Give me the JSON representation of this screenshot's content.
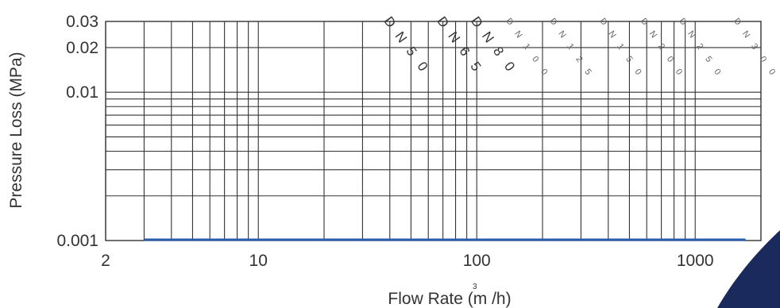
{
  "chart_data": {
    "type": "line",
    "xlabel": "Flow Rate (m /h)",
    "xlabel_superscript": "3",
    "ylabel": "Pressure Loss (MPa)",
    "x_scale": "log",
    "y_scale": "log",
    "xlim": [
      2,
      2000
    ],
    "ylim": [
      0.001,
      0.03
    ],
    "x_ticks": [
      2,
      10,
      100,
      1000
    ],
    "x_tick_labels": [
      "2",
      "10",
      "100",
      "1000"
    ],
    "y_ticks": [
      0.001,
      0.01,
      0.02,
      0.03
    ],
    "y_tick_labels": [
      "0.001",
      "0.01",
      "0.02",
      "0.03"
    ],
    "grid": true,
    "x_gridlines": [
      2,
      3,
      4,
      5,
      6,
      7,
      8,
      9,
      10,
      20,
      30,
      40,
      50,
      60,
      70,
      80,
      90,
      100,
      200,
      300,
      400,
      500,
      600,
      700,
      800,
      900,
      1000
    ],
    "y_gridlines": [
      0.001,
      0.002,
      0.003,
      0.004,
      0.005,
      0.006,
      0.007,
      0.008,
      0.009,
      0.01,
      0.02,
      0.03
    ],
    "series": [
      {
        "x": [
          3,
          10,
          30,
          100,
          300,
          1000,
          1700
        ],
        "y": [
          0.001,
          0.001,
          0.001,
          0.001,
          0.001,
          0.001,
          0.001
        ],
        "color": "#2a5db0"
      }
    ],
    "curve_labels": [
      {
        "text": "DN50",
        "x": 40,
        "style": "bold"
      },
      {
        "text": "DN65",
        "x": 70,
        "style": "bold"
      },
      {
        "text": "DN80",
        "x": 100,
        "style": "bold"
      },
      {
        "text": "DN100",
        "x": 145,
        "style": "faint"
      },
      {
        "text": "DN125",
        "x": 230,
        "style": "faint"
      },
      {
        "text": "DN150",
        "x": 390,
        "style": "faint"
      },
      {
        "text": "DN200",
        "x": 600,
        "style": "faint"
      },
      {
        "text": "DN250",
        "x": 900,
        "style": "faint"
      },
      {
        "text": "DN300",
        "x": 1600,
        "style": "faint"
      }
    ],
    "decoration_color": "#1b2a5c"
  }
}
